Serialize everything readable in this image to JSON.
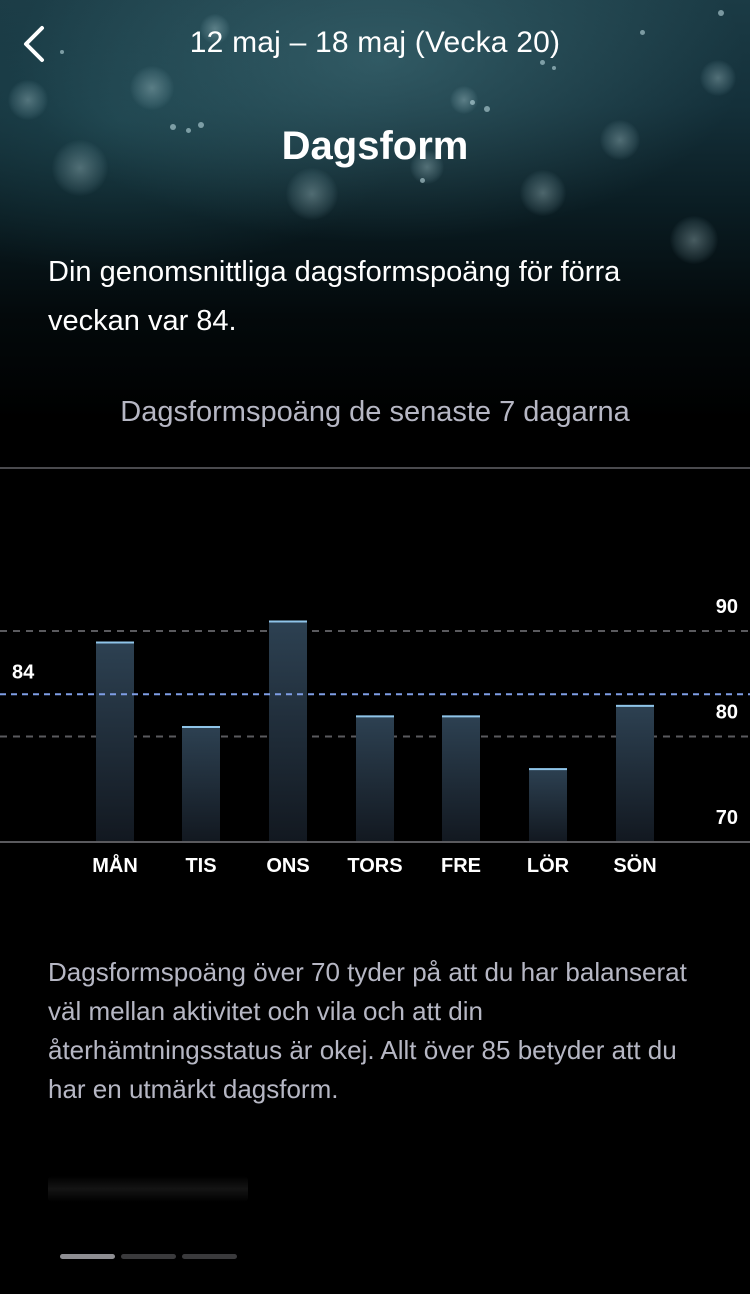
{
  "header": {
    "back_icon": "chevron-left-icon",
    "title": "12 maj – 18 maj (Vecka 20)"
  },
  "page_title": "Dagsform",
  "summary_text": "Din genomsnittliga dagsformspoäng för förra veckan var 84.",
  "chart_title": "Dagsformspoäng de senaste 7 dagarna",
  "chart_data": {
    "type": "bar",
    "categories": [
      "MÅN",
      "TIS",
      "ONS",
      "TORS",
      "FRE",
      "LÖR",
      "SÖN"
    ],
    "values": [
      89,
      81,
      91,
      82,
      82,
      77,
      83
    ],
    "average": 84,
    "average_label": "84",
    "ylim": [
      70,
      90
    ],
    "y_ticks": [
      90,
      80,
      70
    ],
    "colors": {
      "bar_top": "#2d4152",
      "bar_bottom": "#121820",
      "bar_cap": "#8fc4e8",
      "average_line": "#7f9ee6",
      "grid_line": "#5a5a5e"
    }
  },
  "description_text": "Dagsformspoäng över 70 tyder på att du har balanserat väl mellan aktivitet och vila och att din återhämtningsstatus är okej. Allt över 85 betyder att du har en utmärkt dagsform.",
  "pager": {
    "pages": 3,
    "active": 0
  }
}
